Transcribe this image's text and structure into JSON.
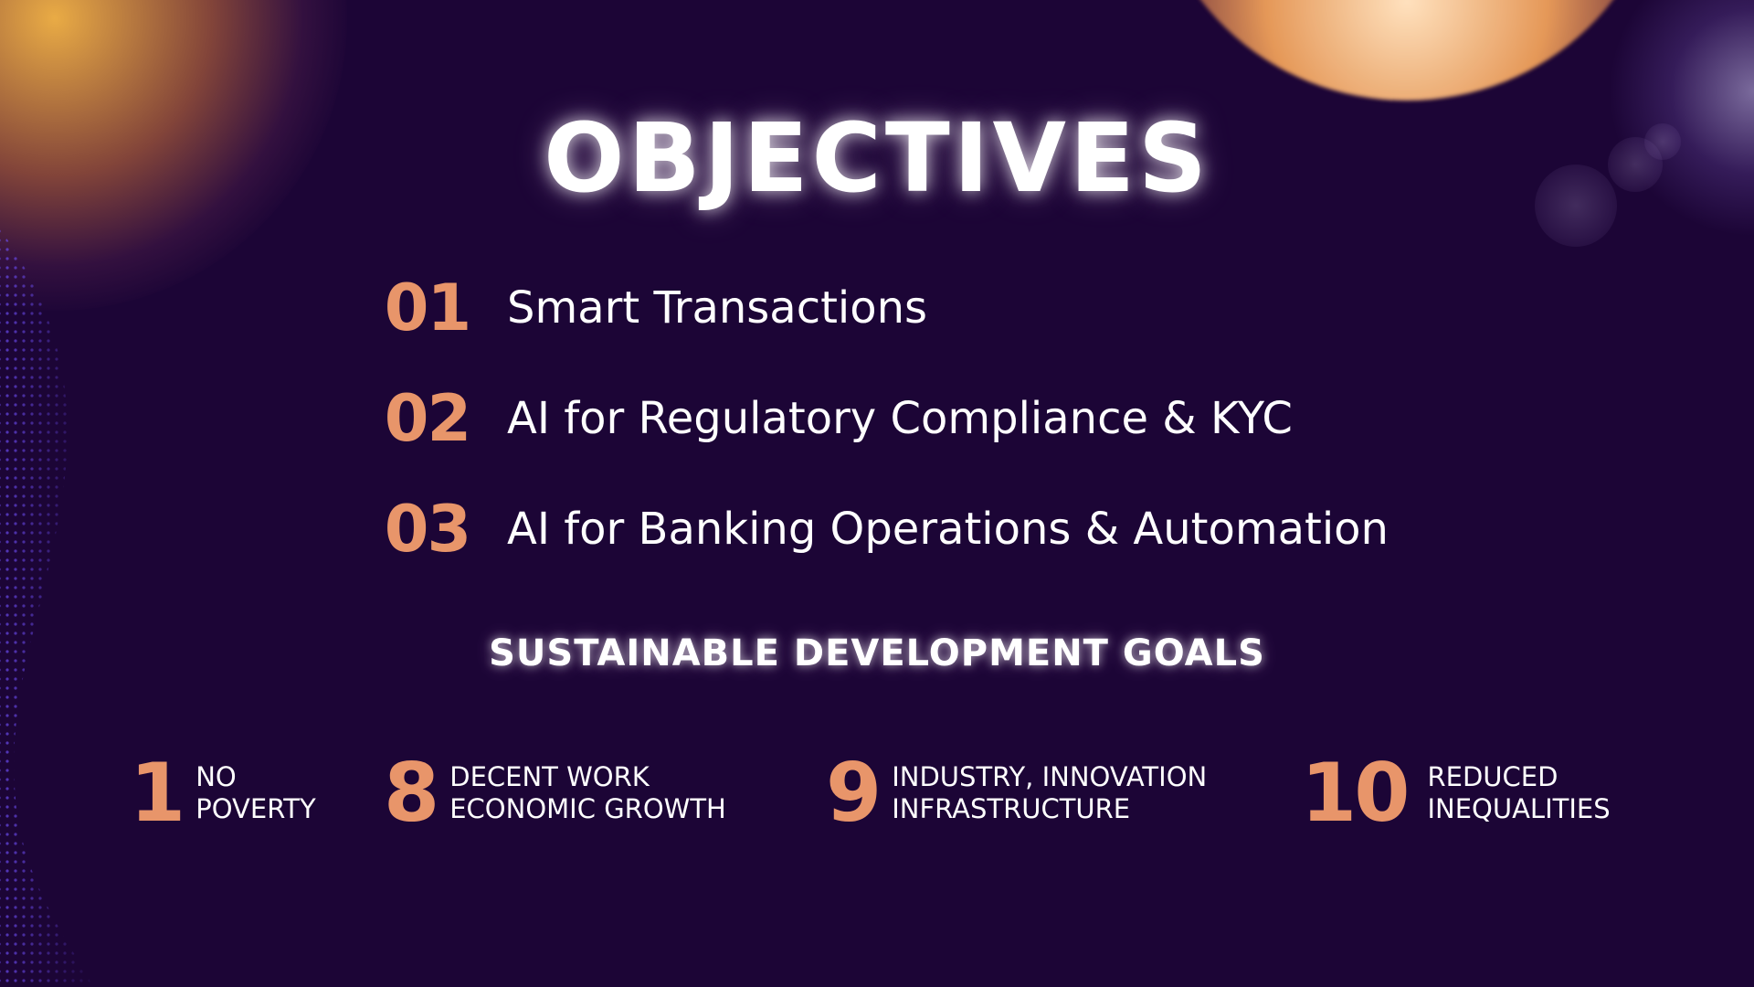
{
  "title": "OBJECTIVES",
  "objectives": [
    {
      "number": "01",
      "text": "Smart Transactions"
    },
    {
      "number": "02",
      "text": "AI for Regulatory Compliance & KYC"
    },
    {
      "number": "03",
      "text": "AI for Banking Operations & Automation"
    }
  ],
  "sdg_heading": "SUSTAINABLE DEVELOPMENT GOALS",
  "goals": [
    {
      "number": "1",
      "line1": "NO",
      "line2": "POVERTY"
    },
    {
      "number": "8",
      "line1": "DECENT WORK",
      "line2": "ECONOMIC GROWTH"
    },
    {
      "number": "9",
      "line1": "INDUSTRY, INNOVATION",
      "line2": "INFRASTRUCTURE"
    },
    {
      "number": "10",
      "line1": "REDUCED",
      "line2": "INEQUALITIES"
    }
  ],
  "colors": {
    "background": "#1c0536",
    "accent": "#e8956a",
    "text": "#ffffff"
  }
}
